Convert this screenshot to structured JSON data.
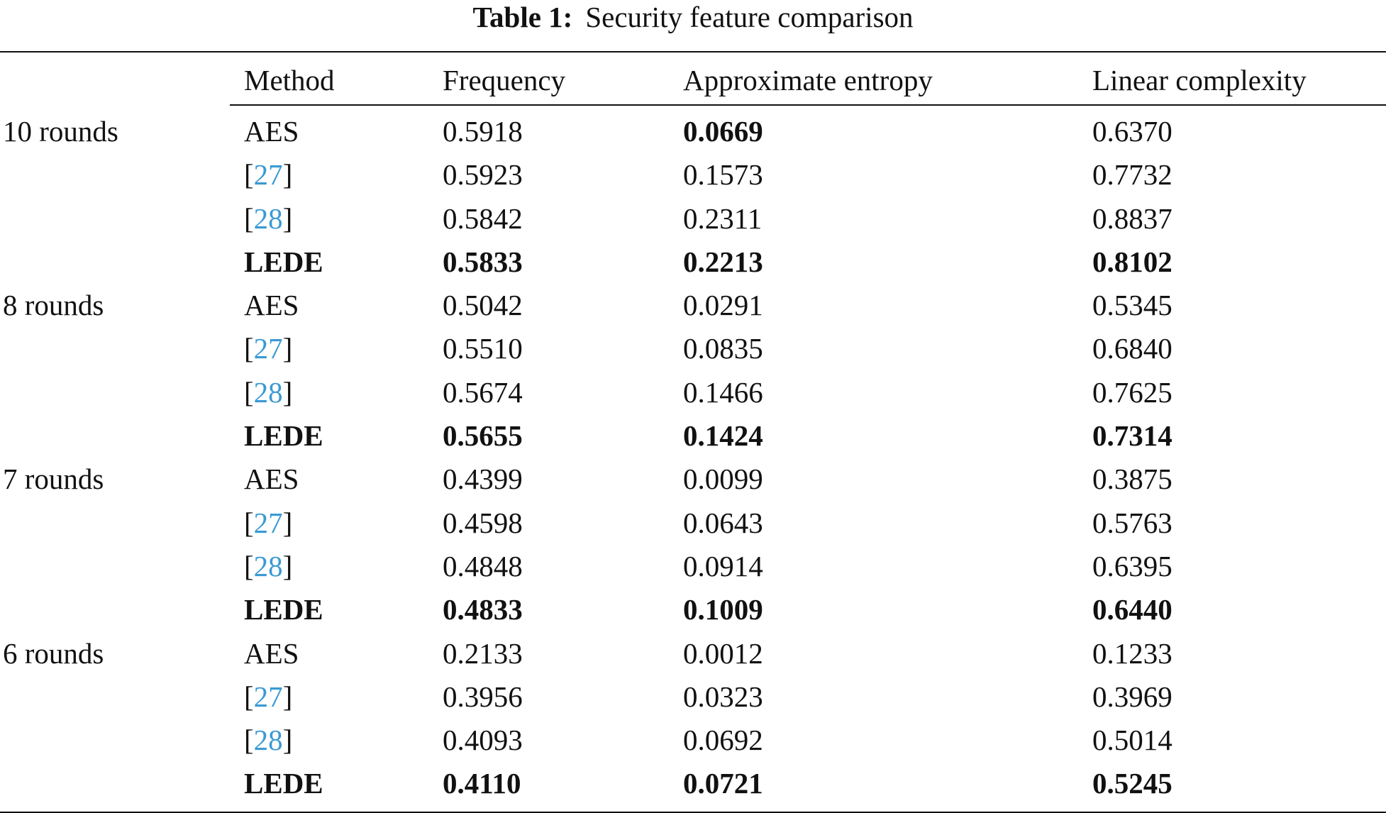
{
  "caption": {
    "label": "Table 1:",
    "text": "Security feature comparison"
  },
  "headers": {
    "group": "",
    "method": "Method",
    "frequency": "Frequency",
    "entropy": "Approximate entropy",
    "linear": "Linear complexity"
  },
  "groups": [
    {
      "label": "10 rounds",
      "rows": [
        {
          "method": "AES",
          "ref": false,
          "frequency": "0.5918",
          "entropy": "0.0669",
          "linear": "0.6370",
          "bold_method": false,
          "bold_frequency": false,
          "bold_entropy": true,
          "bold_linear": false
        },
        {
          "method": "27",
          "ref": true,
          "frequency": "0.5923",
          "entropy": "0.1573",
          "linear": "0.7732",
          "bold_method": false,
          "bold_frequency": false,
          "bold_entropy": false,
          "bold_linear": false
        },
        {
          "method": "28",
          "ref": true,
          "frequency": "0.5842",
          "entropy": "0.2311",
          "linear": "0.8837",
          "bold_method": false,
          "bold_frequency": false,
          "bold_entropy": false,
          "bold_linear": false
        },
        {
          "method": "LEDE",
          "ref": false,
          "frequency": "0.5833",
          "entropy": "0.2213",
          "linear": "0.8102",
          "bold_method": true,
          "bold_frequency": true,
          "bold_entropy": true,
          "bold_linear": true
        }
      ]
    },
    {
      "label": "8 rounds",
      "rows": [
        {
          "method": "AES",
          "ref": false,
          "frequency": "0.5042",
          "entropy": "0.0291",
          "linear": "0.5345",
          "bold_method": false,
          "bold_frequency": false,
          "bold_entropy": false,
          "bold_linear": false
        },
        {
          "method": "27",
          "ref": true,
          "frequency": "0.5510",
          "entropy": "0.0835",
          "linear": "0.6840",
          "bold_method": false,
          "bold_frequency": false,
          "bold_entropy": false,
          "bold_linear": false
        },
        {
          "method": "28",
          "ref": true,
          "frequency": "0.5674",
          "entropy": "0.1466",
          "linear": "0.7625",
          "bold_method": false,
          "bold_frequency": false,
          "bold_entropy": false,
          "bold_linear": false
        },
        {
          "method": "LEDE",
          "ref": false,
          "frequency": "0.5655",
          "entropy": "0.1424",
          "linear": "0.7314",
          "bold_method": true,
          "bold_frequency": true,
          "bold_entropy": true,
          "bold_linear": true
        }
      ]
    },
    {
      "label": "7 rounds",
      "rows": [
        {
          "method": "AES",
          "ref": false,
          "frequency": "0.4399",
          "entropy": "0.0099",
          "linear": "0.3875",
          "bold_method": false,
          "bold_frequency": false,
          "bold_entropy": false,
          "bold_linear": false
        },
        {
          "method": "27",
          "ref": true,
          "frequency": "0.4598",
          "entropy": "0.0643",
          "linear": "0.5763",
          "bold_method": false,
          "bold_frequency": false,
          "bold_entropy": false,
          "bold_linear": false
        },
        {
          "method": "28",
          "ref": true,
          "frequency": "0.4848",
          "entropy": "0.0914",
          "linear": "0.6395",
          "bold_method": false,
          "bold_frequency": false,
          "bold_entropy": false,
          "bold_linear": false
        },
        {
          "method": "LEDE",
          "ref": false,
          "frequency": "0.4833",
          "entropy": "0.1009",
          "linear": "0.6440",
          "bold_method": true,
          "bold_frequency": true,
          "bold_entropy": true,
          "bold_linear": true
        }
      ]
    },
    {
      "label": "6 rounds",
      "rows": [
        {
          "method": "AES",
          "ref": false,
          "frequency": "0.2133",
          "entropy": "0.0012",
          "linear": "0.1233",
          "bold_method": false,
          "bold_frequency": false,
          "bold_entropy": false,
          "bold_linear": false
        },
        {
          "method": "27",
          "ref": true,
          "frequency": "0.3956",
          "entropy": "0.0323",
          "linear": "0.3969",
          "bold_method": false,
          "bold_frequency": false,
          "bold_entropy": false,
          "bold_linear": false
        },
        {
          "method": "28",
          "ref": true,
          "frequency": "0.4093",
          "entropy": "0.0692",
          "linear": "0.5014",
          "bold_method": false,
          "bold_frequency": false,
          "bold_entropy": false,
          "bold_linear": false
        },
        {
          "method": "LEDE",
          "ref": false,
          "frequency": "0.4110",
          "entropy": "0.0721",
          "linear": "0.5245",
          "bold_method": true,
          "bold_frequency": true,
          "bold_entropy": true,
          "bold_linear": true
        }
      ]
    }
  ],
  "colors": {
    "text": "#111111",
    "reference_link": "#3a9ad4",
    "background": "#ffffff"
  }
}
